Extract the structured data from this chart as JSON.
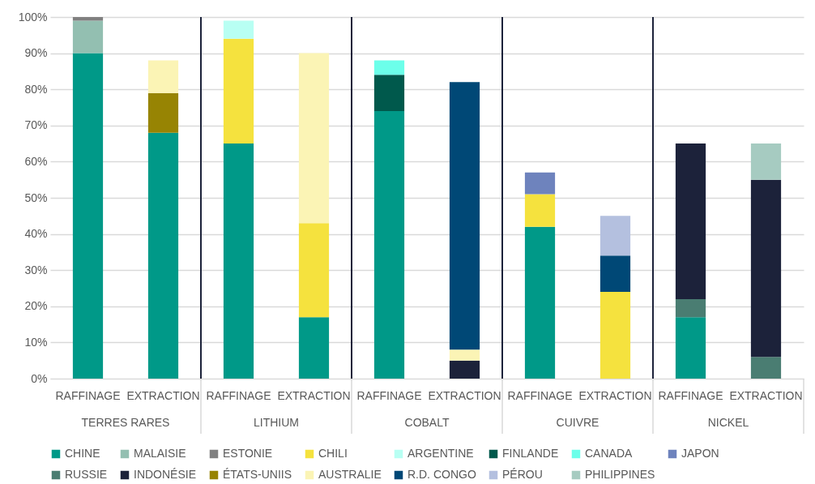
{
  "chart_data": {
    "type": "bar",
    "stacked": true,
    "categories": [
      "RAFFINAGE",
      "EXTRACTION",
      "RAFFINAGE",
      "EXTRACTION",
      "RAFFINAGE",
      "EXTRACTION",
      "RAFFINAGE",
      "EXTRACTION",
      "RAFFINAGE",
      "EXTRACTION"
    ],
    "annotations": [
      "TERRES RARES",
      "LITHIUM",
      "COBALT",
      "CUIVRE",
      "NICKEL"
    ],
    "ylim": [
      0,
      100
    ],
    "yticks": [
      {
        "value": 0,
        "label": "0%"
      },
      {
        "value": 10,
        "label": "10%"
      },
      {
        "value": 20,
        "label": "20%"
      },
      {
        "value": 30,
        "label": "30%"
      },
      {
        "value": 40,
        "label": "40%"
      },
      {
        "value": 50,
        "label": "50%"
      },
      {
        "value": 60,
        "label": "60%"
      },
      {
        "value": 70,
        "label": "70%"
      },
      {
        "value": 80,
        "label": "80%"
      },
      {
        "value": 90,
        "label": "90%"
      },
      {
        "value": 100,
        "label": "100%"
      }
    ],
    "grid": "y",
    "legend": "bottom",
    "series": [
      {
        "name": "CHINE",
        "color": "#009988",
        "values": [
          90,
          68,
          65,
          17,
          74,
          null,
          42,
          null,
          17,
          null
        ]
      },
      {
        "name": "MALAISIE",
        "color": "#93bfb1",
        "values": [
          9,
          null,
          null,
          null,
          null,
          null,
          null,
          null,
          null,
          null
        ]
      },
      {
        "name": "ESTONIE",
        "color": "#808080",
        "values": [
          1,
          null,
          null,
          null,
          null,
          null,
          null,
          null,
          null,
          null
        ]
      },
      {
        "name": "CHILI",
        "color": "#f5e23e",
        "values": [
          null,
          null,
          29,
          26,
          null,
          null,
          9,
          24,
          null,
          null
        ]
      },
      {
        "name": "ARGENTINE",
        "color": "#b8fff3",
        "values": [
          null,
          null,
          5,
          null,
          null,
          null,
          null,
          null,
          null,
          null
        ]
      },
      {
        "name": "FINLANDE",
        "color": "#00594c",
        "values": [
          null,
          null,
          null,
          null,
          10,
          null,
          null,
          null,
          null,
          null
        ]
      },
      {
        "name": "CANADA",
        "color": "#6cffea",
        "values": [
          null,
          null,
          null,
          null,
          4,
          null,
          null,
          null,
          null,
          null
        ]
      },
      {
        "name": "JAPON",
        "color": "#6e83bd",
        "values": [
          null,
          null,
          null,
          null,
          null,
          null,
          6,
          null,
          null,
          null
        ]
      },
      {
        "name": "RUSSIE",
        "color": "#4a7d72",
        "values": [
          null,
          null,
          null,
          null,
          null,
          null,
          null,
          null,
          5,
          6
        ]
      },
      {
        "name": "INDONÉSIE",
        "color": "#1c223a",
        "values": [
          null,
          null,
          null,
          null,
          null,
          5,
          null,
          null,
          43,
          49
        ]
      },
      {
        "name": "ÉTATS-UNIIS",
        "color": "#978403",
        "values": [
          null,
          11,
          null,
          null,
          null,
          null,
          null,
          null,
          null,
          null
        ]
      },
      {
        "name": "AUSTRALIE",
        "color": "#fbf4b5",
        "values": [
          null,
          9,
          null,
          47,
          null,
          3,
          null,
          null,
          null,
          null
        ]
      },
      {
        "name": "R.D. CONGO",
        "color": "#004876",
        "values": [
          null,
          null,
          null,
          null,
          null,
          74,
          null,
          10,
          null,
          null
        ]
      },
      {
        "name": "PÉROU",
        "color": "#b4c0df",
        "values": [
          null,
          null,
          null,
          null,
          null,
          null,
          null,
          11,
          null,
          null
        ]
      },
      {
        "name": "PHILIPPINES",
        "color": "#a6cbc1",
        "values": [
          null,
          null,
          null,
          null,
          null,
          null,
          null,
          null,
          null,
          10
        ]
      }
    ]
  }
}
